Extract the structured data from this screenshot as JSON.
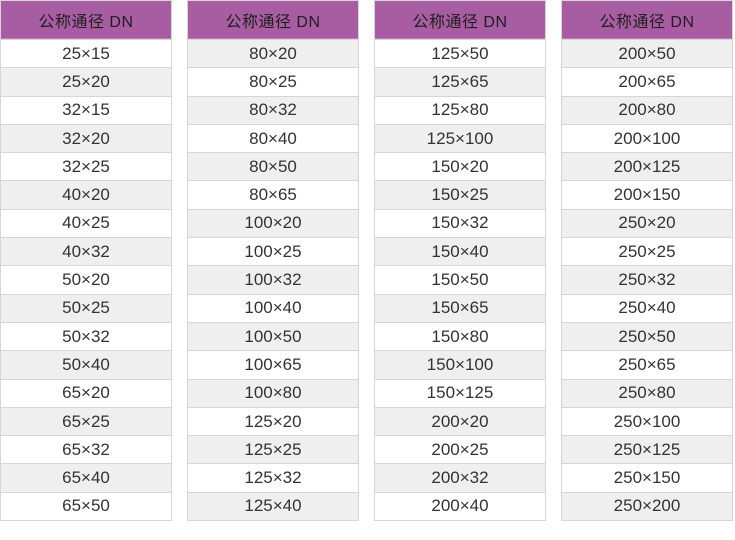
{
  "palette": {
    "header_bg": "#a85ca2",
    "header_edge": "#bd7fb4",
    "header_text": "#1f1f1f",
    "row_bg": "#ffffff",
    "row_alt_bg": "#efefef",
    "row_text": "#333333",
    "border": "#d6d6d6"
  },
  "tables": [
    {
      "header": "公称通径 DN",
      "rows": [
        "25×15",
        "25×20",
        "32×15",
        "32×20",
        "32×25",
        "40×20",
        "40×25",
        "40×32",
        "50×20",
        "50×25",
        "50×32",
        "50×40",
        "65×20",
        "65×25",
        "65×32",
        "65×40",
        "65×50"
      ]
    },
    {
      "header": "公称通径 DN",
      "rows": [
        "80×20",
        "80×25",
        "80×32",
        "80×40",
        "80×50",
        "80×65",
        "100×20",
        "100×25",
        "100×32",
        "100×40",
        "100×50",
        "100×65",
        "100×80",
        "125×20",
        "125×25",
        "125×32",
        "125×40"
      ]
    },
    {
      "header": "公称通径 DN",
      "rows": [
        "125×50",
        "125×65",
        "125×80",
        "125×100",
        "150×20",
        "150×25",
        "150×32",
        "150×40",
        "150×50",
        "150×65",
        "150×80",
        "150×100",
        "150×125",
        "200×20",
        "200×25",
        "200×32",
        "200×40"
      ]
    },
    {
      "header": "公称通径 DN",
      "rows": [
        "200×50",
        "200×65",
        "200×80",
        "200×100",
        "200×125",
        "200×150",
        "250×20",
        "250×25",
        "250×32",
        "250×40",
        "250×50",
        "250×65",
        "250×80",
        "250×100",
        "250×125",
        "250×150",
        "250×200"
      ]
    }
  ]
}
